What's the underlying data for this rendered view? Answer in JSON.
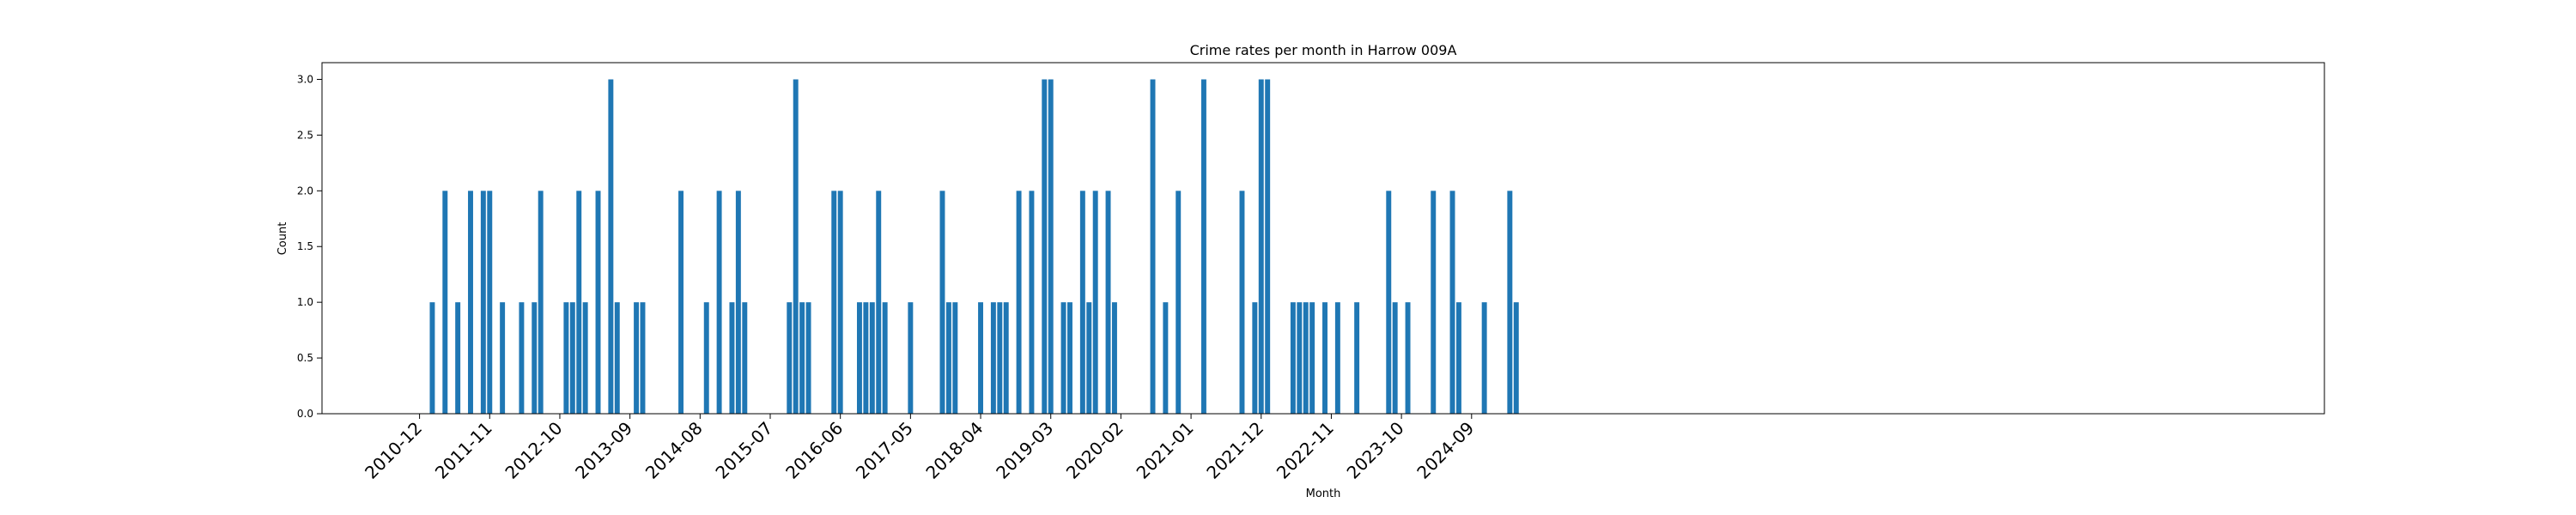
{
  "chart_data": {
    "type": "bar",
    "title": "Crime rates per month in Harrow 009A",
    "xlabel": "Month",
    "ylabel": "Count",
    "ylim": [
      0,
      3.15
    ],
    "yticks": [
      "0.0",
      "0.5",
      "1.0",
      "1.5",
      "2.0",
      "2.5",
      "3.0"
    ],
    "xticks": [
      "2010-12",
      "2011-11",
      "2012-10",
      "2013-09",
      "2014-08",
      "2015-07",
      "2016-06",
      "2017-05",
      "2018-04",
      "2019-03",
      "2020-02",
      "2021-01",
      "2021-12",
      "2022-11",
      "2023-10",
      "2024-09"
    ],
    "grid": false,
    "bar_color": "#1f77b4",
    "categories": [
      "2011-02",
      "2011-04",
      "2011-06",
      "2011-08",
      "2011-10",
      "2011-11",
      "2012-01",
      "2012-04",
      "2012-06",
      "2012-07",
      "2012-11",
      "2012-12",
      "2013-01",
      "2013-02",
      "2013-04",
      "2013-06",
      "2013-07",
      "2013-10",
      "2013-11",
      "2014-05",
      "2014-09",
      "2014-11",
      "2015-01",
      "2015-02",
      "2015-03",
      "2015-10",
      "2015-11",
      "2015-12",
      "2016-01",
      "2016-05",
      "2016-06",
      "2016-09",
      "2016-10",
      "2016-11",
      "2016-12",
      "2017-01",
      "2017-05",
      "2017-10",
      "2017-11",
      "2017-12",
      "2018-04",
      "2018-06",
      "2018-07",
      "2018-08",
      "2018-10",
      "2018-12",
      "2019-02",
      "2019-03",
      "2019-05",
      "2019-06",
      "2019-08",
      "2019-09",
      "2019-10",
      "2019-12",
      "2020-01",
      "2020-07",
      "2020-09",
      "2020-11",
      "2021-03",
      "2021-09",
      "2021-11",
      "2021-12",
      "2022-01",
      "2022-05",
      "2022-06",
      "2022-07",
      "2022-08",
      "2022-10",
      "2022-12",
      "2023-03",
      "2023-08",
      "2023-09",
      "2023-11",
      "2024-03",
      "2024-06",
      "2024-07",
      "2024-11",
      "2025-03",
      "2025-04"
    ],
    "values": [
      1,
      2,
      1,
      2,
      2,
      2,
      1,
      1,
      1,
      2,
      1,
      1,
      2,
      1,
      2,
      3,
      1,
      1,
      1,
      2,
      1,
      2,
      1,
      2,
      1,
      1,
      3,
      1,
      1,
      2,
      2,
      1,
      1,
      1,
      2,
      1,
      1,
      2,
      1,
      1,
      1,
      1,
      1,
      1,
      2,
      2,
      3,
      3,
      1,
      1,
      2,
      1,
      2,
      2,
      1,
      3,
      1,
      2,
      3,
      2,
      1,
      3,
      3,
      1,
      1,
      1,
      1,
      1,
      1,
      1,
      2,
      1,
      1,
      2,
      2,
      1,
      1,
      2,
      1
    ]
  }
}
